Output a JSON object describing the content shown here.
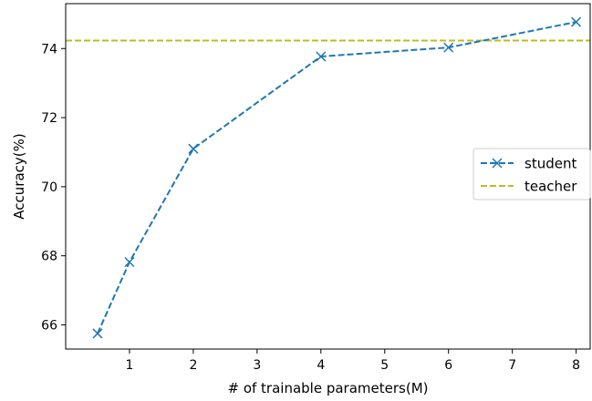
{
  "chart_data": {
    "type": "line",
    "title": "",
    "xlabel": "# of trainable parameters(M)",
    "ylabel": "Accuracy(%)",
    "xlim": [
      0.0,
      8.22
    ],
    "ylim": [
      65.3,
      75.3
    ],
    "xticks": [
      1,
      2,
      3,
      4,
      5,
      6,
      7,
      8
    ],
    "yticks": [
      66,
      68,
      70,
      72,
      74
    ],
    "x_tick_labels": [
      "1",
      "2",
      "3",
      "4",
      "5",
      "6",
      "7",
      "8"
    ],
    "y_tick_labels": [
      "66",
      "68",
      "70",
      "72",
      "74"
    ],
    "grid": false,
    "legend_position": "center-right",
    "series": [
      {
        "name": "student",
        "style": "dashed-line-x-markers",
        "color": "#1f77b4",
        "x": [
          0.5,
          1,
          2,
          4,
          6,
          8
        ],
        "y": [
          65.75,
          67.82,
          71.1,
          73.77,
          74.03,
          74.77
        ]
      },
      {
        "name": "teacher",
        "style": "dashed-horizontal-line",
        "color": "#bcbd22",
        "y": 74.23
      }
    ]
  }
}
